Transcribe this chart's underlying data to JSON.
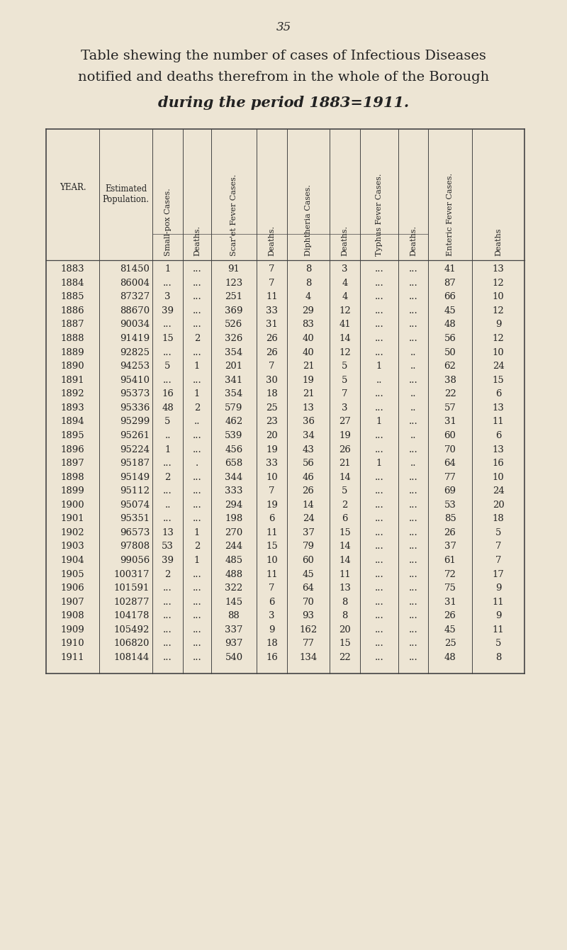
{
  "page_number": "35",
  "title_lines": [
    "Table shewing the number of cases of Infectious Diseases",
    "notified and deaths therefrom in the whole of the Borough",
    "during the period 1883=1911."
  ],
  "bg_color": "#ede5d4",
  "col_headers_rotated": [
    "Small-pox Cases.",
    "Deaths.",
    "Scar'et Fever Cases.",
    "Deaths.",
    "Diphtheria Cases.",
    "Deaths.",
    "Typhus Fever Cases.",
    "Deaths.",
    "Enteric Fever Cases.",
    "Deaths"
  ],
  "rows": [
    [
      "1883",
      "81450",
      "1",
      "...",
      "91",
      "7",
      "8",
      "3",
      "...",
      "...",
      "41",
      "13"
    ],
    [
      "1884",
      "86004",
      "...",
      "...",
      "123",
      "7",
      "8",
      "4",
      "...",
      "...",
      "87",
      "12"
    ],
    [
      "1885",
      "87327",
      "3",
      "...",
      "251",
      "11",
      "4",
      "4",
      "...",
      "...",
      "66",
      "10"
    ],
    [
      "1886",
      "88670",
      "39",
      "...",
      "369",
      "33",
      "29",
      "12",
      "...",
      "...",
      "45",
      "12"
    ],
    [
      "1887",
      "90034",
      "...",
      "...",
      "526",
      "31",
      "83",
      "41",
      "...",
      "...",
      "48",
      "9"
    ],
    [
      "1888",
      "91419",
      "15",
      "2",
      "326",
      "26",
      "40",
      "14",
      "...",
      "...",
      "56",
      "12"
    ],
    [
      "1889",
      "92825",
      "...",
      "...",
      "354",
      "26",
      "40",
      "12",
      "...",
      "..",
      "50",
      "10"
    ],
    [
      "1890",
      "94253",
      "5",
      "1",
      "201",
      "7",
      "21",
      "5",
      "1",
      "..",
      "62",
      "24"
    ],
    [
      "1891",
      "95410",
      "...",
      "...",
      "341",
      "30",
      "19",
      "5",
      "..",
      "...",
      "38",
      "15"
    ],
    [
      "1892",
      "95373",
      "16",
      "1",
      "354",
      "18",
      "21",
      "7",
      "...",
      "..",
      "22",
      "6"
    ],
    [
      "1893",
      "95336",
      "48",
      "2",
      "579",
      "25",
      "13",
      "3",
      "...",
      "..",
      "57",
      "13"
    ],
    [
      "1894",
      "95299",
      "5",
      "..",
      "462",
      "23",
      "36",
      "27",
      "1",
      "...",
      "31",
      "11"
    ],
    [
      "1895",
      "95261",
      "..",
      "...",
      "539",
      "20",
      "34",
      "19",
      "...",
      "..",
      "60",
      "6"
    ],
    [
      "1896",
      "95224",
      "1",
      "...",
      "456",
      "19",
      "43",
      "26",
      "...",
      "...",
      "70",
      "13"
    ],
    [
      "1897",
      "95187",
      "...",
      ".",
      "658",
      "33",
      "56",
      "21",
      "1",
      "..",
      "64",
      "16"
    ],
    [
      "1898",
      "95149",
      "2",
      "...",
      "344",
      "10",
      "46",
      "14",
      "...",
      "...",
      "77",
      "10"
    ],
    [
      "1899",
      "95112",
      "...",
      "...",
      "333",
      "7",
      "26",
      "5",
      "...",
      "...",
      "69",
      "24"
    ],
    [
      "1900",
      "95074",
      "..",
      "...",
      "294",
      "19",
      "14",
      "2",
      "...",
      "...",
      "53",
      "20"
    ],
    [
      "1901",
      "95351",
      "...",
      "...",
      "198",
      "6",
      "24",
      "6",
      "...",
      "...",
      "85",
      "18"
    ],
    [
      "1902",
      "96573",
      "13",
      "1",
      "270",
      "11",
      "37",
      "15",
      "...",
      "...",
      "26",
      "5"
    ],
    [
      "1903",
      "97808",
      "53",
      "2",
      "244",
      "15",
      "79",
      "14",
      "...",
      "...",
      "37",
      "7"
    ],
    [
      "1904",
      "99056",
      "39",
      "1",
      "485",
      "10",
      "60",
      "14",
      "...",
      "...",
      "61",
      "7"
    ],
    [
      "1905",
      "100317",
      "2",
      "...",
      "488",
      "11",
      "45",
      "11",
      "...",
      "...",
      "72",
      "17"
    ],
    [
      "1906",
      "101591",
      "...",
      "...",
      "322",
      "7",
      "64",
      "13",
      "...",
      "...",
      "75",
      "9"
    ],
    [
      "1907",
      "102877",
      "...",
      "...",
      "145",
      "6",
      "70",
      "8",
      "...",
      "...",
      "31",
      "11"
    ],
    [
      "1908",
      "104178",
      "...",
      "...",
      "88",
      "3",
      "93",
      "8",
      "...",
      "...",
      "26",
      "9"
    ],
    [
      "1909",
      "105492",
      "...",
      "...",
      "337",
      "9",
      "162",
      "20",
      "...",
      "...",
      "45",
      "11"
    ],
    [
      "1910",
      "106820",
      "...",
      "...",
      "937",
      "18",
      "77",
      "15",
      "...",
      "...",
      "25",
      "5"
    ],
    [
      "1911",
      "108144",
      "...",
      "...",
      "540",
      "16",
      "134",
      "22",
      "...",
      "...",
      "48",
      "8"
    ]
  ],
  "text_color": "#222222",
  "line_color": "#444444",
  "font_size_page": 12,
  "font_size_title1": 14,
  "font_size_title2": 14,
  "font_size_title3": 15,
  "font_size_header": 8,
  "font_size_data": 9.5
}
